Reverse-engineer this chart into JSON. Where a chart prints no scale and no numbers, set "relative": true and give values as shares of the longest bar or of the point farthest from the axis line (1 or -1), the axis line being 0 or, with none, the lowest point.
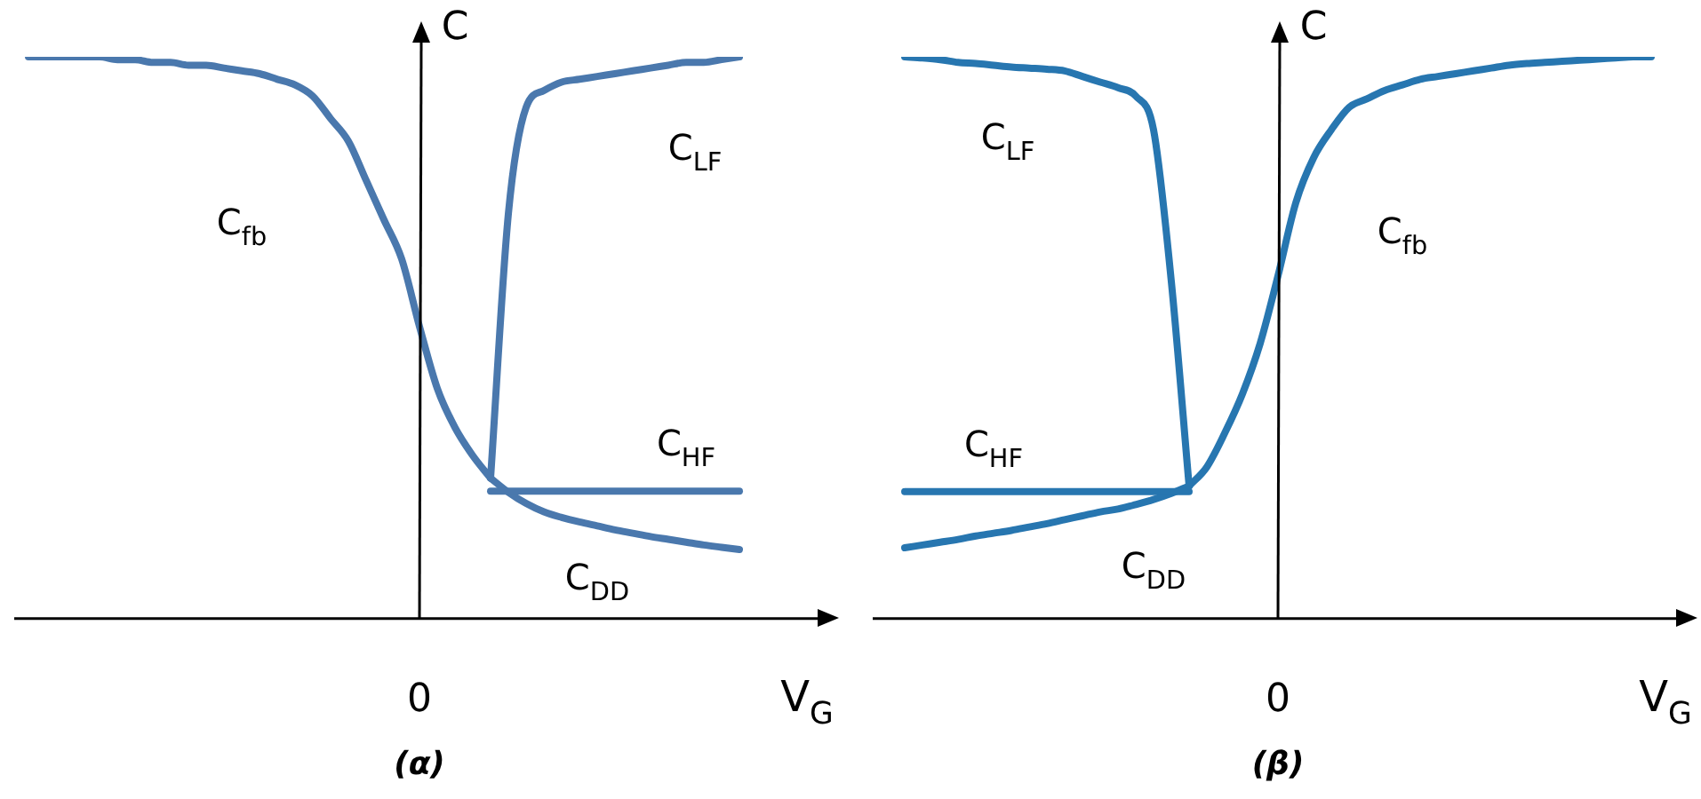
{
  "chart_data": [
    {
      "type": "line",
      "title": "(α)",
      "xlabel": "V$_{G}$",
      "ylabel": "C",
      "relative": true,
      "legend": false,
      "marker": "none",
      "categories": [
        null,
        null,
        null,
        null,
        null,
        null,
        null,
        null,
        null,
        null,
        null,
        null,
        null,
        null,
        null,
        null,
        null,
        null,
        null,
        null,
        null,
        null,
        null,
        null,
        null,
        null,
        null,
        null,
        null,
        null,
        null,
        null,
        null,
        null,
        null,
        null,
        null,
        null,
        null,
        null,
        null,
        null,
        null,
        null,
        null
      ],
      "series": [
        {
          "name": "C$_{fb}$",
          "color": "#4a78ad",
          "values": [
            1.0,
            1.0,
            1.0,
            1.0,
            1.0,
            0.995,
            0.995,
            0.99,
            0.99,
            0.985,
            0.985,
            0.98,
            0.975,
            0.97,
            0.96,
            0.95,
            0.93,
            0.89,
            0.85,
            0.78,
            0.71,
            0.64,
            0.52,
            0.41,
            0.34,
            0.29,
            0.25,
            null,
            null,
            null,
            null,
            null,
            null,
            null,
            null,
            null,
            null,
            null,
            null,
            null,
            null,
            null,
            null,
            null,
            null
          ]
        },
        {
          "name": "C$_{LF}$",
          "color": "#4a78ad",
          "values": [
            null,
            null,
            null,
            null,
            null,
            null,
            null,
            null,
            null,
            null,
            null,
            null,
            null,
            null,
            null,
            null,
            null,
            null,
            null,
            null,
            null,
            null,
            null,
            null,
            null,
            null,
            0.25,
            0.72,
            0.91,
            0.94,
            0.955,
            0.96,
            0.965,
            0.97,
            0.975,
            0.98,
            0.985,
            0.99,
            0.99,
            0.995,
            1.0,
            null,
            null,
            null,
            null
          ]
        },
        {
          "name": "C$_{HF}$",
          "color": "#4a78ad",
          "values": [
            null,
            null,
            null,
            null,
            null,
            null,
            null,
            null,
            null,
            null,
            null,
            null,
            null,
            null,
            null,
            null,
            null,
            null,
            null,
            null,
            null,
            null,
            null,
            null,
            null,
            null,
            0.227,
            0.227,
            0.227,
            0.227,
            0.227,
            0.227,
            0.227,
            0.227,
            0.227,
            0.227,
            0.227,
            0.227,
            0.227,
            0.227,
            0.227,
            null,
            null,
            null,
            null
          ]
        },
        {
          "name": "C$_{DD}$",
          "color": "#4a78ad",
          "values": [
            null,
            null,
            null,
            null,
            null,
            null,
            null,
            null,
            null,
            null,
            null,
            null,
            null,
            null,
            null,
            null,
            null,
            null,
            null,
            null,
            null,
            null,
            null,
            null,
            null,
            null,
            0.25,
            0.225,
            0.205,
            0.19,
            0.18,
            0.172,
            0.165,
            0.158,
            0.152,
            0.146,
            0.141,
            0.136,
            0.131,
            0.127,
            0.123,
            null,
            null,
            null,
            null
          ]
        }
      ],
      "annotations": [
        "0"
      ]
    },
    {
      "type": "line",
      "title": "(β)",
      "xlabel": "V$_{G}$",
      "ylabel": "C",
      "relative": true,
      "legend": false,
      "marker": "none",
      "categories": [
        null,
        null,
        null,
        null,
        null,
        null,
        null,
        null,
        null,
        null,
        null,
        null,
        null,
        null,
        null,
        null,
        null,
        null,
        null,
        null,
        null,
        null,
        null,
        null,
        null,
        null,
        null,
        null,
        null,
        null,
        null,
        null,
        null,
        null,
        null,
        null,
        null,
        null,
        null,
        null,
        null,
        null,
        null,
        null,
        null
      ],
      "series": [
        {
          "name": "C$_{LF}$",
          "color": "#2776b0",
          "values": [
            null,
            1.0,
            0.998,
            0.995,
            0.99,
            0.988,
            0.985,
            0.982,
            0.98,
            0.978,
            0.975,
            0.965,
            0.955,
            0.945,
            0.93,
            0.87,
            0.6,
            0.236,
            null,
            null,
            null,
            null,
            null,
            null,
            null,
            null,
            null,
            null,
            null,
            null,
            null,
            null,
            null,
            null,
            null,
            null,
            null,
            null,
            null,
            null,
            null,
            null,
            null,
            null,
            null
          ]
        },
        {
          "name": "C$_{HF}$",
          "color": "#2776b0",
          "values": [
            null,
            0.226,
            0.226,
            0.226,
            0.226,
            0.226,
            0.226,
            0.226,
            0.226,
            0.226,
            0.226,
            0.226,
            0.226,
            0.226,
            0.226,
            0.226,
            0.226,
            0.226,
            null,
            null,
            null,
            null,
            null,
            null,
            null,
            null,
            null,
            null,
            null,
            null,
            null,
            null,
            null,
            null,
            null,
            null,
            null,
            null,
            null,
            null,
            null,
            null,
            null,
            null,
            null
          ]
        },
        {
          "name": "C$_{DD}$",
          "color": "#2776b0",
          "values": [
            null,
            0.126,
            0.131,
            0.136,
            0.141,
            0.147,
            0.152,
            0.157,
            0.163,
            0.169,
            0.176,
            0.183,
            0.19,
            0.195,
            0.203,
            0.212,
            0.223,
            0.236,
            null,
            null,
            null,
            null,
            null,
            null,
            null,
            null,
            null,
            null,
            null,
            null,
            null,
            null,
            null,
            null,
            null,
            null,
            null,
            null,
            null,
            null,
            null,
            null,
            null,
            null,
            null
          ]
        },
        {
          "name": "C$_{fb}$",
          "color": "#2776b0",
          "values": [
            null,
            null,
            null,
            null,
            null,
            null,
            null,
            null,
            null,
            null,
            null,
            null,
            null,
            null,
            null,
            null,
            null,
            0.236,
            0.27,
            0.33,
            0.4,
            0.49,
            0.61,
            0.74,
            0.82,
            0.87,
            0.91,
            0.925,
            0.94,
            0.95,
            0.96,
            0.965,
            0.97,
            0.975,
            0.98,
            0.985,
            0.988,
            0.99,
            0.992,
            0.994,
            0.996,
            0.998,
            1.0,
            1.0,
            null
          ]
        }
      ],
      "annotations": [
        "0"
      ]
    }
  ]
}
